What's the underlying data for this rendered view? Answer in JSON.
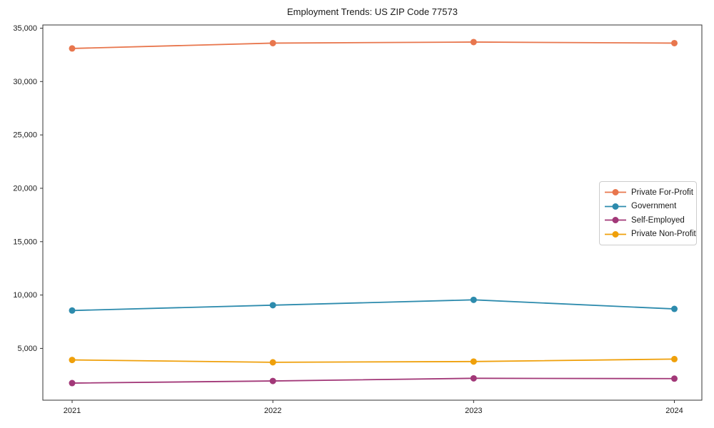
{
  "chart_data": {
    "type": "line",
    "title": "Employment Trends: US ZIP Code 77573",
    "x": [
      2021,
      2022,
      2023,
      2024
    ],
    "xtick_labels": [
      "2021",
      "2022",
      "2023",
      "2024"
    ],
    "series": [
      {
        "name": "Private For-Profit",
        "color": "#e8764d",
        "values": [
          33100,
          33600,
          33700,
          33600
        ]
      },
      {
        "name": "Government",
        "color": "#2d8bad",
        "values": [
          8550,
          9050,
          9550,
          8700
        ]
      },
      {
        "name": "Self-Employed",
        "color": "#a23878",
        "values": [
          1750,
          1950,
          2200,
          2170
        ]
      },
      {
        "name": "Private Non-Profit",
        "color": "#efa00b",
        "values": [
          3920,
          3700,
          3770,
          4000
        ]
      }
    ],
    "yticks": [
      5000,
      10000,
      15000,
      20000,
      25000,
      30000,
      35000
    ],
    "ytick_labels": [
      "5,000",
      "10,000",
      "15,000",
      "20,000",
      "25,000",
      "30,000",
      "35,000"
    ],
    "ylim": [
      150,
      35300
    ],
    "grid": false,
    "legend_position": "center right",
    "marker": "circle",
    "axis_color": "#333333",
    "text_color": "#1a1a1a"
  }
}
